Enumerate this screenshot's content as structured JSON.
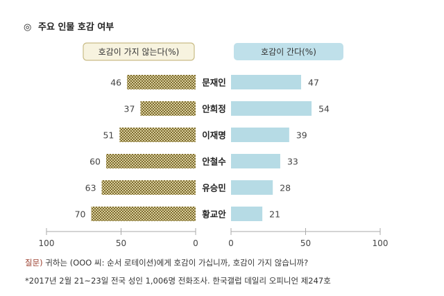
{
  "chart_data": {
    "type": "bar",
    "title": "주요 인물 호감 여부",
    "title_bullet": "◎",
    "categories": [
      "문재인",
      "안희정",
      "이재명",
      "안철수",
      "유승민",
      "황교안"
    ],
    "series": [
      {
        "name": "호감이 가지 않는다(%)",
        "values": [
          46,
          37,
          51,
          60,
          63,
          70
        ],
        "color": "#8c7a3c",
        "side": "left"
      },
      {
        "name": "호감이 간다(%)",
        "values": [
          47,
          54,
          39,
          33,
          28,
          21
        ],
        "color": "#b6dbe5",
        "side": "right"
      }
    ],
    "left_axis": {
      "range": [
        100,
        0
      ],
      "ticks": [
        "100",
        "50",
        "0"
      ]
    },
    "right_axis": {
      "range": [
        0,
        100
      ],
      "ticks": [
        "0",
        "50",
        "100"
      ]
    },
    "legend_placement": "top",
    "grid": false
  },
  "notes": {
    "question_label": "질문)",
    "question_text": " 귀하는 (OOO 씨: 순서 로테이션)에게 호감이 가십니까, 호감이 가지 않습니까?",
    "source": "*2017년 2월 21~23일 전국 성인 1,006명 전화조사. 한국갤럽 데일리 오피니언 제247호"
  },
  "colors": {
    "legend_left_bg": "#f7f3df",
    "legend_left_border": "#c9bc86",
    "legend_right_bg": "#bfe0ea",
    "axis_line": "#aaaaaa"
  }
}
